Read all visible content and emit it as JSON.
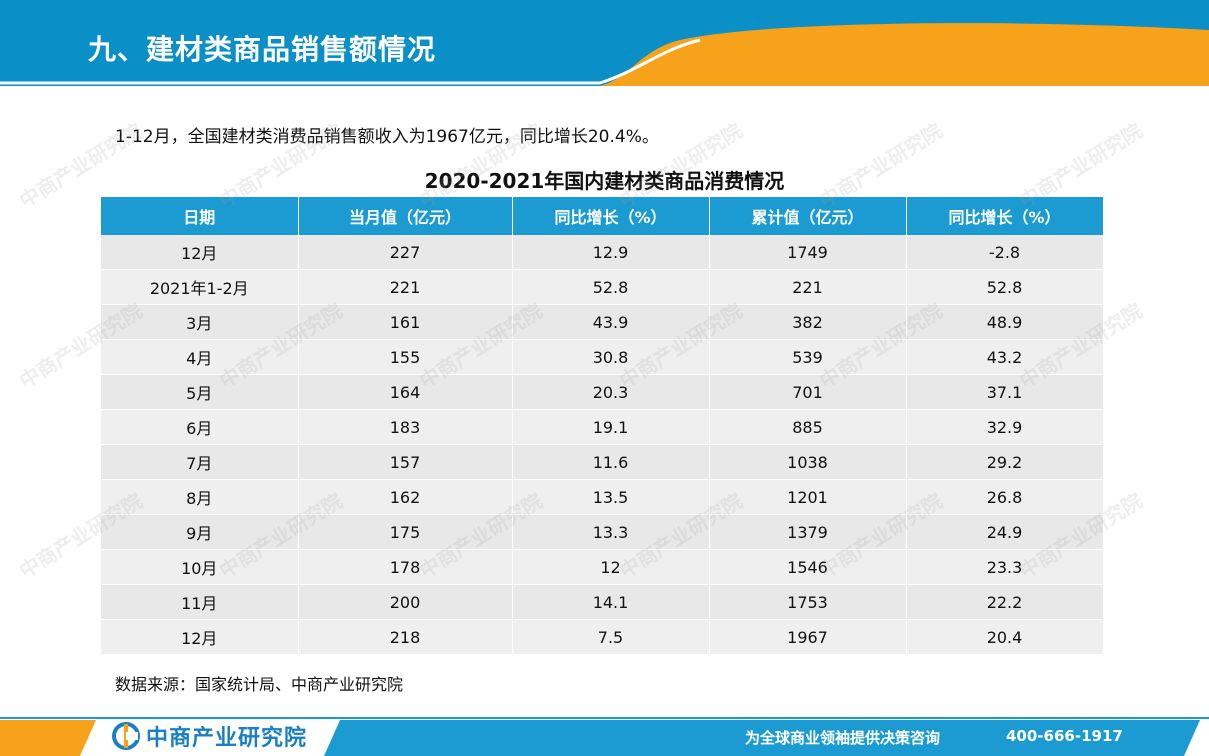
{
  "header": {
    "title": "九、建材类商品销售额情况",
    "colors": {
      "blue": "#0a8fc6",
      "orange": "#f7a21b"
    }
  },
  "intro": "1-12月，全国建材类消费品销售额收入为1967亿元，同比增长20.4%。",
  "table": {
    "title": "2020-2021年国内建材类商品消费情况",
    "columns": [
      "日期",
      "当月值（亿元）",
      "同比增长（%）",
      "累计值（亿元）",
      "同比增长（%）"
    ],
    "rows": [
      [
        "12月",
        "227",
        "12.9",
        "1749",
        "-2.8"
      ],
      [
        "2021年1-2月",
        "221",
        "52.8",
        "221",
        "52.8"
      ],
      [
        "3月",
        "161",
        "43.9",
        "382",
        "48.9"
      ],
      [
        "4月",
        "155",
        "30.8",
        "539",
        "43.2"
      ],
      [
        "5月",
        "164",
        "20.3",
        "701",
        "37.1"
      ],
      [
        "6月",
        "183",
        "19.1",
        "885",
        "32.9"
      ],
      [
        "7月",
        "157",
        "11.6",
        "1038",
        "29.2"
      ],
      [
        "8月",
        "162",
        "13.5",
        "1201",
        "26.8"
      ],
      [
        "9月",
        "175",
        "13.3",
        "1379",
        "24.9"
      ],
      [
        "10月",
        "178",
        "12",
        "1546",
        "23.3"
      ],
      [
        "11月",
        "200",
        "14.1",
        "1753",
        "22.2"
      ],
      [
        "12月",
        "218",
        "7.5",
        "1967",
        "20.4"
      ]
    ]
  },
  "source": "数据来源：国家统计局、中商产业研究院",
  "footer": {
    "logo_text": "中商产业研究院",
    "logo_icon": "askci-logo-icon",
    "slogan": "为全球商业领袖提供决策咨询",
    "phone": "400-666-1917"
  },
  "watermark": "中商产业研究院"
}
